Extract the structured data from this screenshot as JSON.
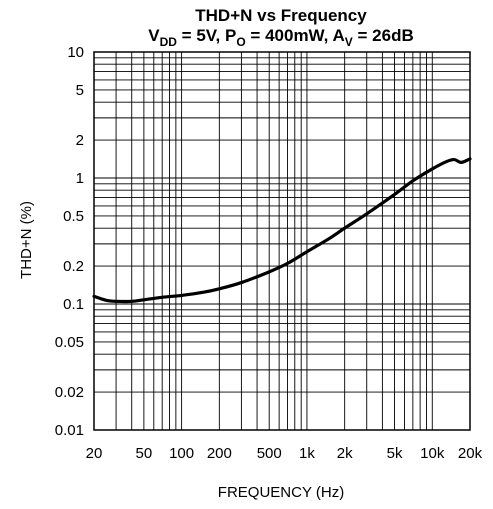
{
  "chart_data": {
    "type": "line",
    "title": "THD+N vs Frequency",
    "subtitle": {
      "parts": [
        {
          "text": "V",
          "sub": false
        },
        {
          "text": "DD",
          "sub": true
        },
        {
          "text": " = 5V, P",
          "sub": false
        },
        {
          "text": "O",
          "sub": true
        },
        {
          "text": " = 400mW, A",
          "sub": false
        },
        {
          "text": "V",
          "sub": true
        },
        {
          "text": " = 26dB",
          "sub": false
        }
      ]
    },
    "xlabel": "FREQUENCY (Hz)",
    "ylabel": "THD+N (%)",
    "xscale": "log",
    "yscale": "log",
    "xlim": [
      20,
      20000
    ],
    "ylim": [
      0.01,
      10
    ],
    "grid": true,
    "x_ticks": [
      {
        "value": 20,
        "label": "20"
      },
      {
        "value": 50,
        "label": "50"
      },
      {
        "value": 100,
        "label": "100"
      },
      {
        "value": 200,
        "label": "200"
      },
      {
        "value": 500,
        "label": "500"
      },
      {
        "value": 1000,
        "label": "1k"
      },
      {
        "value": 2000,
        "label": "2k"
      },
      {
        "value": 5000,
        "label": "5k"
      },
      {
        "value": 10000,
        "label": "10k"
      },
      {
        "value": 20000,
        "label": "20k"
      }
    ],
    "y_ticks": [
      {
        "value": 10,
        "label": "10"
      },
      {
        "value": 5,
        "label": "5"
      },
      {
        "value": 2,
        "label": "2"
      },
      {
        "value": 1,
        "label": "1"
      },
      {
        "value": 0.5,
        "label": "0.5"
      },
      {
        "value": 0.2,
        "label": "0.2"
      },
      {
        "value": 0.1,
        "label": "0.1"
      },
      {
        "value": 0.05,
        "label": "0.05"
      },
      {
        "value": 0.02,
        "label": "0.02"
      },
      {
        "value": 0.01,
        "label": "0.01"
      }
    ],
    "series": [
      {
        "color": "#000000",
        "x": [
          20,
          25,
          30,
          40,
          50,
          70,
          100,
          150,
          200,
          300,
          500,
          700,
          1000,
          1500,
          2000,
          3000,
          5000,
          7000,
          10000,
          13000,
          15000,
          17000,
          20000
        ],
        "y": [
          0.115,
          0.107,
          0.105,
          0.105,
          0.108,
          0.113,
          0.117,
          0.124,
          0.132,
          0.148,
          0.18,
          0.21,
          0.26,
          0.33,
          0.4,
          0.52,
          0.74,
          0.95,
          1.18,
          1.35,
          1.4,
          1.33,
          1.42
        ]
      }
    ]
  }
}
